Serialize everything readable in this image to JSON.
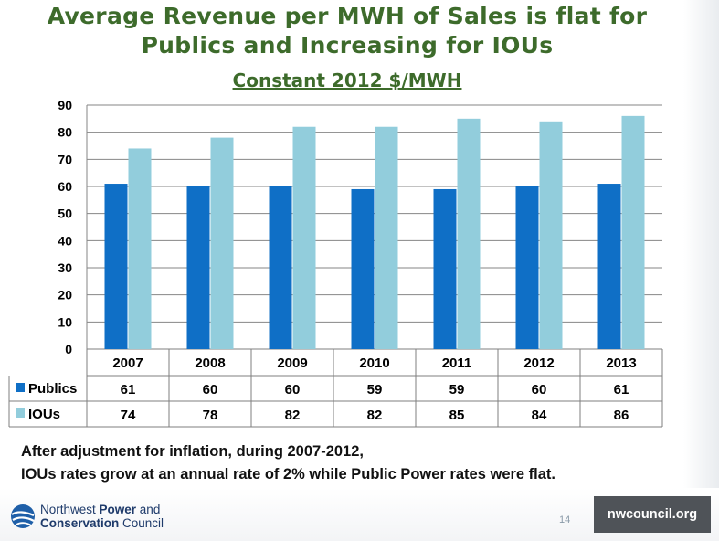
{
  "slide": {
    "title_line1": "Average Revenue per MWH of Sales is flat for",
    "title_line2": "Publics and Increasing for IOUs",
    "subtitle": "Constant 2012 $/MWH",
    "footnote_line1": "After adjustment for inflation, during 2007-2012,",
    "footnote_line2": "IOUs rates grow at an annual rate of 2% while Public Power rates were flat.",
    "page_number": "14"
  },
  "footer": {
    "logo_line1_prefix": "Northwest ",
    "logo_line1_bold": "Power",
    "logo_line1_suffix": " and",
    "logo_line2_bold": "Conservation",
    "logo_line2_suffix": " Council",
    "website": "nwcouncil.org"
  },
  "colors": {
    "publics": "#0f6fc6",
    "ious": "#92cddc",
    "title": "#3d6b2b",
    "logo": "#1f3b6b",
    "badge": "#4f5358"
  },
  "chart_data": {
    "type": "bar",
    "title": "Constant 2012 $/MWH",
    "categories": [
      "2007",
      "2008",
      "2009",
      "2010",
      "2011",
      "2012",
      "2013"
    ],
    "series": [
      {
        "name": "Publics",
        "values": [
          61,
          60,
          60,
          59,
          59,
          60,
          61
        ],
        "color": "#0f6fc6"
      },
      {
        "name": "IOUs",
        "values": [
          74,
          78,
          82,
          82,
          85,
          84,
          86
        ],
        "color": "#92cddc"
      }
    ],
    "ylim": [
      0,
      90
    ],
    "yticks": [
      0,
      10,
      20,
      30,
      40,
      50,
      60,
      70,
      80,
      90
    ],
    "grid": true,
    "legend": "data-table",
    "xlabel": "",
    "ylabel": ""
  }
}
